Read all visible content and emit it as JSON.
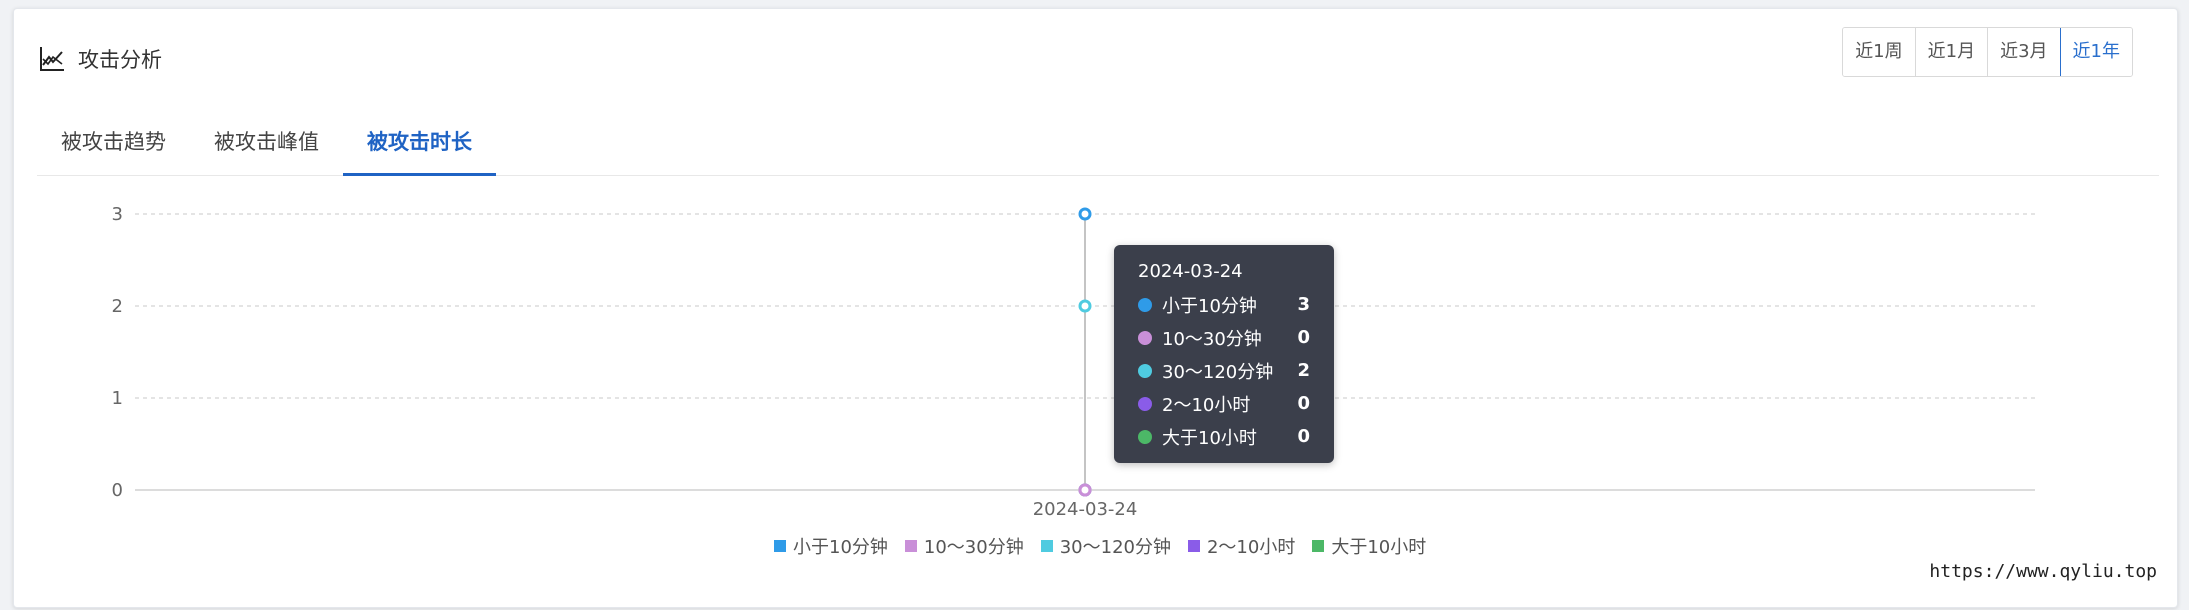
{
  "card": {
    "title": "攻击分析",
    "title_icon": "line-chart-icon"
  },
  "range_buttons": [
    {
      "label": "近1周",
      "active": false
    },
    {
      "label": "近1月",
      "active": false
    },
    {
      "label": "近3月",
      "active": false
    },
    {
      "label": "近1年",
      "active": true
    }
  ],
  "tabs": [
    {
      "label": "被攻击趋势",
      "active": false
    },
    {
      "label": "被攻击峰值",
      "active": false
    },
    {
      "label": "被攻击时长",
      "active": true
    }
  ],
  "chart_data": {
    "type": "line",
    "x": [
      "2024-03-24"
    ],
    "ylim": [
      0,
      3
    ],
    "yticks": [
      0,
      1,
      2,
      3
    ],
    "grid": true,
    "legend_position": "bottom",
    "series": [
      {
        "name": "小于10分钟",
        "color": "#2f9be8",
        "values": [
          3
        ]
      },
      {
        "name": "10～30分钟",
        "color": "#c98fd8",
        "values": [
          0
        ]
      },
      {
        "name": "30～120分钟",
        "color": "#4fcbe0",
        "values": [
          2
        ]
      },
      {
        "name": "2～10小时",
        "color": "#8a5ce8",
        "values": [
          0
        ]
      },
      {
        "name": "大于10小时",
        "color": "#4cb867",
        "values": [
          0
        ]
      }
    ]
  },
  "tooltip": {
    "date": "2024-03-24",
    "rows": [
      {
        "name": "小于10分钟",
        "value": "3",
        "color": "#2f9be8"
      },
      {
        "name": "10～30分钟",
        "value": "0",
        "color": "#c98fd8"
      },
      {
        "name": "30～120分钟",
        "value": "2",
        "color": "#4fcbe0"
      },
      {
        "name": "2～10小时",
        "value": "0",
        "color": "#8a5ce8"
      },
      {
        "name": "大于10小时",
        "value": "0",
        "color": "#4cb867"
      }
    ]
  },
  "watermark": "https://www.qyliu.top"
}
